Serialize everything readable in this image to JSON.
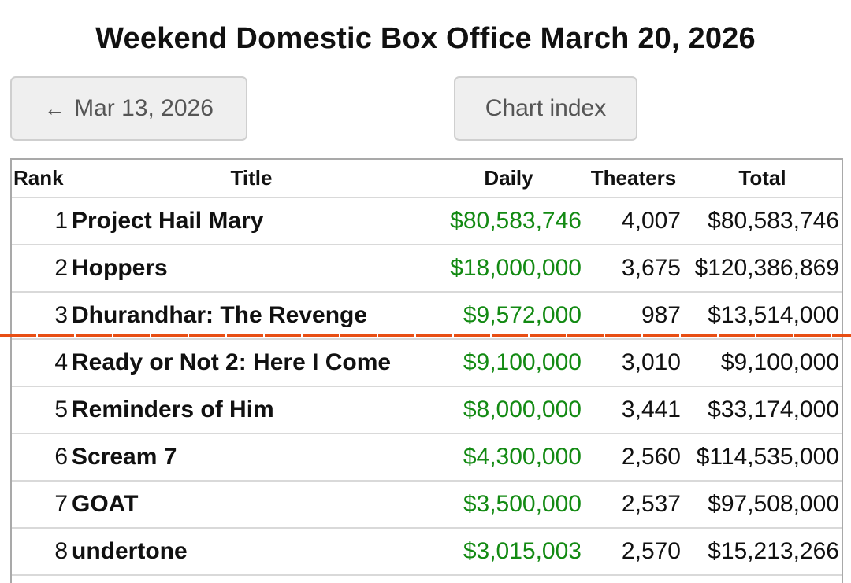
{
  "page": {
    "title": "Weekend Domestic Box Office March 20, 2026",
    "prev_arrow": "←",
    "prev_label": "Mar 13, 2026",
    "index_label": "Chart index"
  },
  "table": {
    "headers": {
      "rank": "Rank",
      "title": "Title",
      "daily": "Daily",
      "theaters": "Theaters",
      "total": "Total"
    },
    "rows": [
      {
        "rank": "1",
        "title": "Project Hail Mary",
        "daily": "$80,583,746",
        "theaters": "4,007",
        "total": "$80,583,746"
      },
      {
        "rank": "2",
        "title": "Hoppers",
        "daily": "$18,000,000",
        "theaters": "3,675",
        "total": "$120,386,869"
      },
      {
        "rank": "3",
        "title": "Dhurandhar: The Revenge",
        "daily": "$9,572,000",
        "theaters": "987",
        "total": "$13,514,000"
      },
      {
        "rank": "4",
        "title": "Ready or Not 2: Here I Come",
        "daily": "$9,100,000",
        "theaters": "3,010",
        "total": "$9,100,000"
      },
      {
        "rank": "5",
        "title": "Reminders of Him",
        "daily": "$8,000,000",
        "theaters": "3,441",
        "total": "$33,174,000"
      },
      {
        "rank": "6",
        "title": "Scream 7",
        "daily": "$4,300,000",
        "theaters": "2,560",
        "total": "$114,535,000"
      },
      {
        "rank": "7",
        "title": "GOAT",
        "daily": "$3,500,000",
        "theaters": "2,537",
        "total": "$97,508,000"
      },
      {
        "rank": "8",
        "title": "undertone",
        "daily": "$3,015,003",
        "theaters": "2,570",
        "total": "$15,213,266"
      }
    ]
  },
  "colors": {
    "daily_text": "#138a13",
    "divider_line": "#e84e14",
    "button_bg": "#efefef"
  }
}
